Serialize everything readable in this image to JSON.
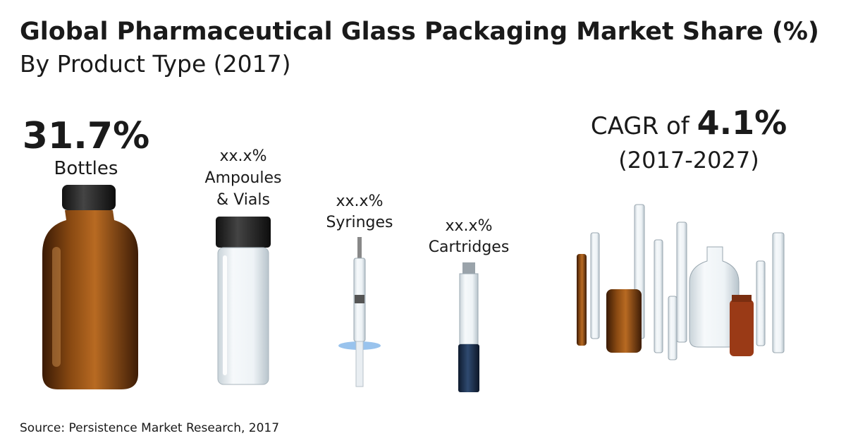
{
  "header": {
    "title": "Global Pharmaceutical Glass Packaging Market Share (%)",
    "subtitle": "By Product Type (2017)"
  },
  "products": [
    {
      "share": "31.7%",
      "label_lines": [
        "Bottles"
      ]
    },
    {
      "share": "xx.x%",
      "label_lines": [
        "Ampoules",
        "& Vials"
      ]
    },
    {
      "share": "xx.x%",
      "label_lines": [
        "Syringes"
      ]
    },
    {
      "share": "xx.x%",
      "label_lines": [
        "Cartridges"
      ]
    }
  ],
  "cagr": {
    "prefix": "CAGR of",
    "value": "4.1%",
    "period": "(2017-2027)"
  },
  "source": "Source: Persistence Market Research, 2017"
}
